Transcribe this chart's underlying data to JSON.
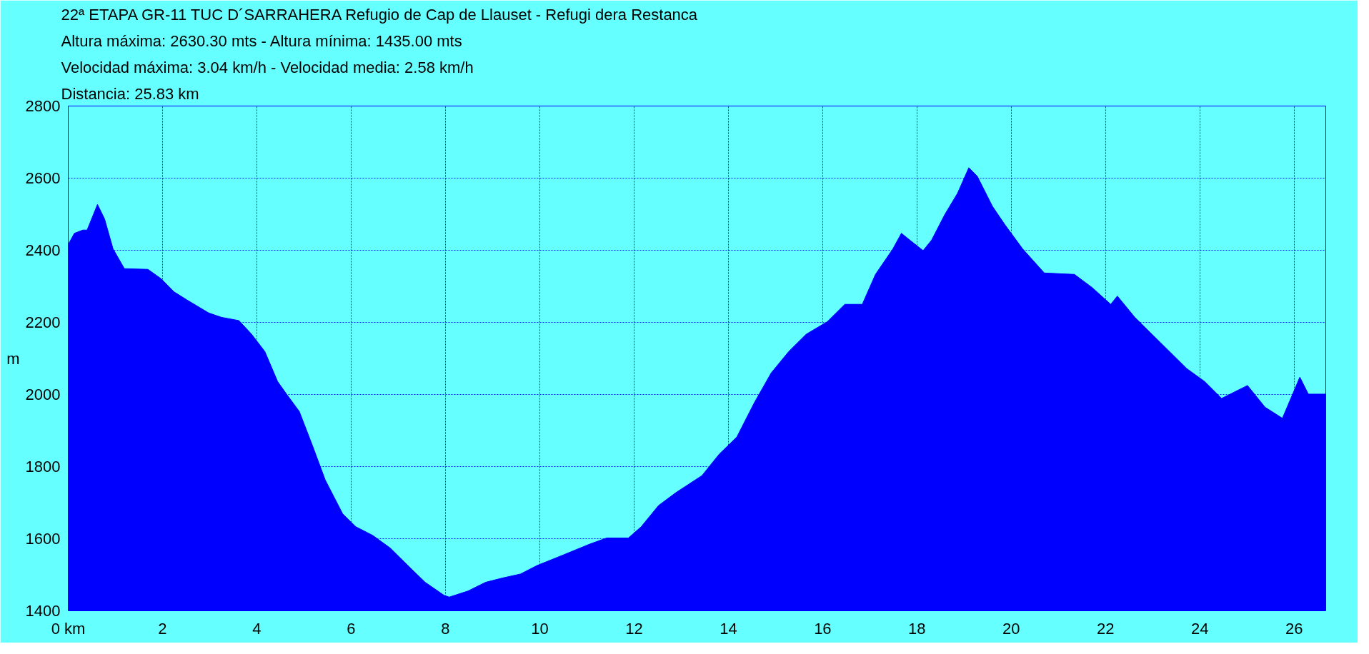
{
  "chart_data": {
    "type": "area",
    "title": "22ª ETAPA GR-11 TUC D´SARRAHERA Refugio de Cap de Llauset - Refugi dera Restanca",
    "annotations": [
      "Altura máxima: 2630.30 mts - Altura mínima: 1435.00 mts",
      "Velocidad máxima: 3.04 km/h - Velocidad media: 2.58 km/h",
      "Distancia: 25.83 km"
    ],
    "ylabel": "m",
    "x": [
      0,
      0.13,
      0.31,
      0.4,
      0.62,
      0.77,
      0.95,
      1.19,
      1.69,
      1.97,
      2.24,
      2.52,
      2.98,
      3.25,
      3.62,
      3.89,
      4.17,
      4.44,
      4.63,
      4.9,
      5.18,
      5.45,
      5.82,
      6.1,
      6.46,
      6.83,
      7.2,
      7.57,
      7.97,
      8.08,
      8.48,
      8.85,
      9.21,
      9.59,
      9.95,
      10.5,
      11.06,
      11.42,
      11.88,
      12.15,
      12.52,
      12.89,
      13.44,
      13.81,
      14.18,
      14.55,
      14.91,
      15.28,
      15.65,
      16.1,
      16.47,
      16.84,
      17.12,
      17.49,
      17.67,
      17.85,
      18.13,
      18.31,
      18.59,
      18.86,
      19.1,
      19.28,
      19.6,
      19.87,
      20.24,
      20.7,
      21.34,
      21.71,
      22.11,
      22.25,
      22.62,
      23.17,
      23.72,
      24.1,
      24.46,
      25.01,
      25.38,
      25.75,
      26.12,
      26.3,
      26.67
    ],
    "values": [
      2416,
      2447,
      2456,
      2456,
      2527,
      2487,
      2404,
      2349,
      2347,
      2321,
      2285,
      2262,
      2226,
      2214,
      2205,
      2167,
      2119,
      2036,
      2001,
      1953,
      1858,
      1763,
      1669,
      1633,
      1609,
      1574,
      1526,
      1479,
      1443,
      1438,
      1455,
      1479,
      1491,
      1502,
      1526,
      1555,
      1585,
      1602,
      1602,
      1633,
      1692,
      1728,
      1775,
      1835,
      1882,
      1977,
      2060,
      2119,
      2167,
      2202,
      2250,
      2250,
      2333,
      2404,
      2447,
      2428,
      2399,
      2428,
      2499,
      2558,
      2629,
      2605,
      2522,
      2470,
      2404,
      2337,
      2333,
      2297,
      2250,
      2273,
      2214,
      2143,
      2072,
      2036,
      1989,
      2025,
      1965,
      1934,
      2048,
      2001,
      2001
    ],
    "color": "#0000ff",
    "xlim": [
      0,
      26.67
    ],
    "ylim": [
      1400,
      2800
    ],
    "xticks": [
      {
        "value": 0,
        "label": "0 km"
      },
      2,
      4,
      6,
      8,
      10,
      12,
      14,
      16,
      18,
      20,
      22,
      24,
      26
    ],
    "yticks": [
      1400,
      1600,
      1800,
      2000,
      2200,
      2400,
      2600,
      2800
    ],
    "grid": true,
    "line_style": "dotted"
  }
}
